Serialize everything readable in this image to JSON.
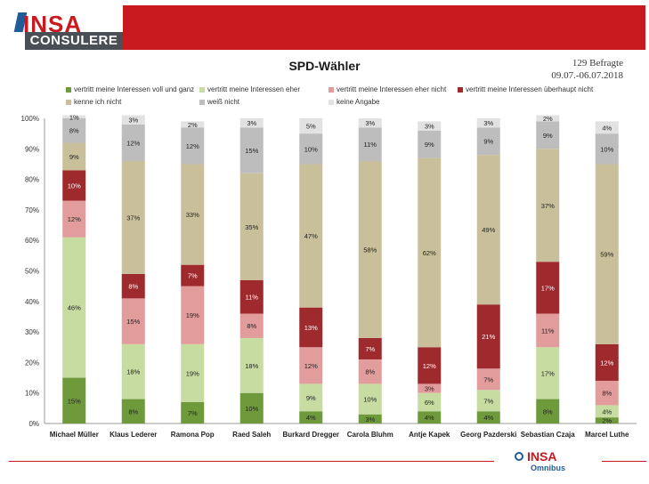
{
  "header": {
    "logo_top": "INSA",
    "logo_bottom": "CONSULERE",
    "brand_color": "#c8191e"
  },
  "title": "SPD-Wähler",
  "meta": {
    "respondents": "129 Befragte",
    "date_range": "09.07.-06.07.2018"
  },
  "footer": {
    "logo_top": "INSA",
    "logo_bottom": "Omnibus"
  },
  "chart_data": {
    "type": "bar",
    "stacked": true,
    "ylim": [
      0,
      100
    ],
    "yticks": [
      "0%",
      "10%",
      "20%",
      "30%",
      "40%",
      "50%",
      "60%",
      "70%",
      "80%",
      "90%",
      "100%"
    ],
    "legend_position": "top",
    "categories": [
      "Michael Müller",
      "Klaus Lederer",
      "Ramona Pop",
      "Raed Saleh",
      "Burkard Dregger",
      "Carola Bluhm",
      "Antje Kapek",
      "Georg Pazderski",
      "Sebastian Czaja",
      "Marcel Luthe"
    ],
    "series": [
      {
        "name": "vertritt meine Interessen voll und ganz",
        "color": "#6e9a3c",
        "values": [
          15,
          8,
          7,
          10,
          4,
          3,
          4,
          4,
          8,
          2
        ]
      },
      {
        "name": "vertritt meine Interessen eher",
        "color": "#c6dca0",
        "values": [
          46,
          18,
          19,
          18,
          9,
          10,
          6,
          7,
          17,
          4
        ]
      },
      {
        "name": "vertritt meine Interessen eher nicht",
        "color": "#e29c9c",
        "values": [
          12,
          15,
          19,
          8,
          12,
          8,
          3,
          7,
          11,
          8
        ]
      },
      {
        "name": "vertritt meine Interessen überhaupt nicht",
        "color": "#9e2a2e",
        "values": [
          10,
          8,
          7,
          11,
          13,
          7,
          12,
          21,
          17,
          12
        ]
      },
      {
        "name": "kenne ich nicht",
        "color": "#c9bf9a",
        "values": [
          9,
          37,
          33,
          35,
          47,
          58,
          62,
          49,
          37,
          59
        ]
      },
      {
        "name": "weiß nicht",
        "color": "#bdbdbd",
        "values": [
          8,
          12,
          12,
          15,
          10,
          11,
          9,
          9,
          9,
          10
        ]
      },
      {
        "name": "keine Angabe",
        "color": "#e2e2e2",
        "values": [
          1,
          3,
          2,
          3,
          5,
          3,
          3,
          3,
          2,
          4
        ]
      }
    ]
  }
}
